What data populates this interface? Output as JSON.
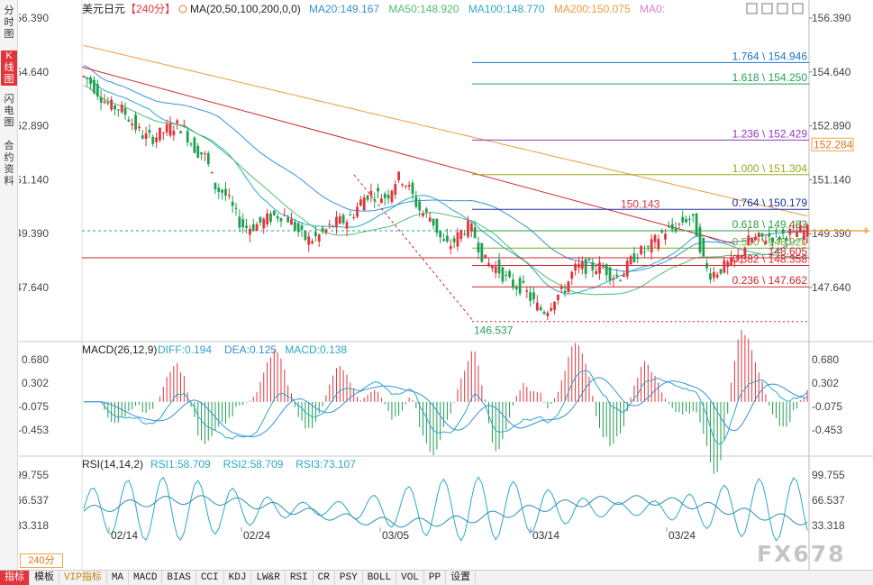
{
  "left_tabs": [
    {
      "label": "分时图",
      "active": false
    },
    {
      "label": "K线图",
      "active": true
    },
    {
      "label": "闪电图",
      "active": false
    },
    {
      "label": "合约资料",
      "active": false
    }
  ],
  "main_panel": {
    "title": "美元日元",
    "period_tag": "【240分】",
    "ma_label": "MA(20,50,100,200,0,0)",
    "ma_values": [
      {
        "text": "MA20:149.167",
        "color": "#3a8fd8"
      },
      {
        "text": "MA50:148.920",
        "color": "#4fbf6f"
      },
      {
        "text": "MA100:148.770",
        "color": "#2ba9c8"
      },
      {
        "text": "MA200:150.075",
        "color": "#ec9a3a"
      },
      {
        "text": "MA0:",
        "color": "#d482c8"
      }
    ],
    "y_ticks": [
      "156.390",
      "154.640",
      "152.890",
      "151.140",
      "149.390",
      "147.640"
    ],
    "current_price": "152.284",
    "low_label": "146.537",
    "high_label": "150.143",
    "line_price_label": "148.605"
  },
  "fib_levels": [
    {
      "text": "1.764 \\ 154.946",
      "value": 154.946,
      "color": "#1a74c9"
    },
    {
      "text": "1.618 \\ 154.250",
      "value": 154.25,
      "color": "#25a05a"
    },
    {
      "text": "1.236 \\ 152.429",
      "value": 152.429,
      "color": "#8e3bbf"
    },
    {
      "text": "1.000 \\ 151.304",
      "value": 151.304,
      "color": "#9aa81d"
    },
    {
      "text": "0.764 \\ 150.179",
      "value": 150.179,
      "color": "#1b2f9c"
    },
    {
      "text": "0.618 \\ 149.483",
      "value": 149.483,
      "color": "#2d9f3f"
    },
    {
      "text": "0.500 \\ 148.920",
      "value": 148.92,
      "color": "#7dab2a"
    },
    {
      "text": "0.382 \\ 148.358",
      "value": 148.358,
      "color": "#d0282e"
    },
    {
      "text": "0.236 \\ 147.662",
      "value": 147.662,
      "color": "#d0282e"
    }
  ],
  "macd_panel": {
    "label": "MACD(26,12,9)",
    "values": [
      {
        "text": "DIFF:0.194",
        "color": "#2ba9c8"
      },
      {
        "text": "DEA:0.125",
        "color": "#3a8fd8"
      },
      {
        "text": "MACD:0.138",
        "color": "#2ba9c8"
      }
    ],
    "y_ticks": [
      "0.680",
      "0.302",
      "-0.075",
      "-0.453"
    ]
  },
  "rsi_panel": {
    "label": "RSI(14,14,2)",
    "values": [
      {
        "text": "RSI1:58.709",
        "color": "#2ba9c8"
      },
      {
        "text": "RSI2:58.709",
        "color": "#2ba9c8"
      },
      {
        "text": "RSI3:73.107",
        "color": "#2ba9c8"
      }
    ],
    "y_ticks": [
      "99.755",
      "66.537",
      "33.318"
    ]
  },
  "x_axis_labels": [
    "02/14",
    "02/24",
    "03/05",
    "03/14",
    "03/24"
  ],
  "period_badge": "240分",
  "watermark": "FX678",
  "bottom_tabs": [
    {
      "label": "指标",
      "active": true,
      "vip": false
    },
    {
      "label": "模板",
      "active": false,
      "vip": false
    },
    {
      "label": "VIP指标",
      "active": false,
      "vip": true
    },
    {
      "label": "MA",
      "active": false,
      "vip": false
    },
    {
      "label": "MACD",
      "active": false,
      "vip": false
    },
    {
      "label": "BIAS",
      "active": false,
      "vip": false
    },
    {
      "label": "CCI",
      "active": false,
      "vip": false
    },
    {
      "label": "KDJ",
      "active": false,
      "vip": false
    },
    {
      "label": "LW&R",
      "active": false,
      "vip": false
    },
    {
      "label": "RSI",
      "active": false,
      "vip": false
    },
    {
      "label": "CR",
      "active": false,
      "vip": false
    },
    {
      "label": "PSY",
      "active": false,
      "vip": false
    },
    {
      "label": "BOLL",
      "active": false,
      "vip": false
    },
    {
      "label": "VOL",
      "active": false,
      "vip": false
    },
    {
      "label": "PP",
      "active": false,
      "vip": false
    },
    {
      "label": "设置",
      "active": false,
      "vip": false
    }
  ],
  "toolbar_icons": [
    "grid-icon",
    "expand-icon",
    "collapse-icon",
    "close-icon"
  ],
  "colors": {
    "up": "#e1343b",
    "down": "#1e9f4f",
    "trendline": "#d0282e"
  }
}
